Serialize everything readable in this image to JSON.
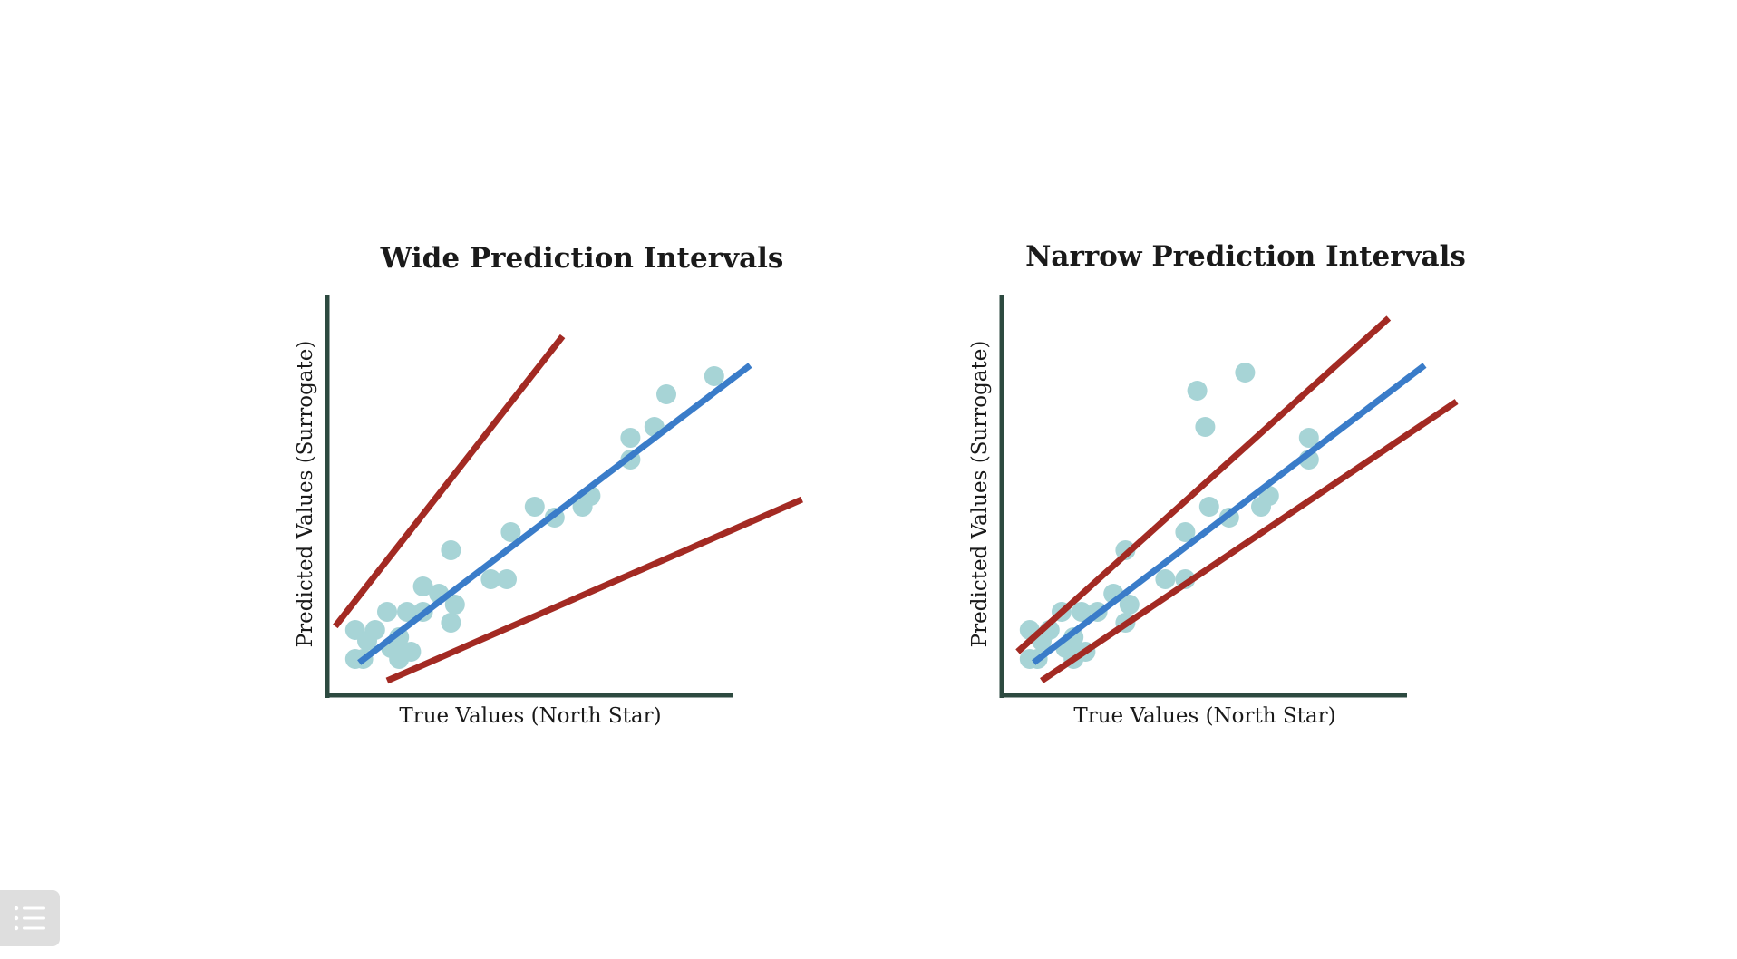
{
  "chart_data": [
    {
      "type": "scatter",
      "title": "Wide Prediction Intervals",
      "xlabel": "True Values (North Star)",
      "ylabel": "Predicted Values (Surrogate)",
      "xlim": [
        0,
        100
      ],
      "ylim": [
        0,
        100
      ],
      "grid": false,
      "points": [
        [
          7,
          10
        ],
        [
          9,
          10
        ],
        [
          7,
          18
        ],
        [
          10,
          15
        ],
        [
          12,
          18
        ],
        [
          16,
          13
        ],
        [
          18,
          10
        ],
        [
          19,
          12
        ],
        [
          21,
          12
        ],
        [
          18,
          16
        ],
        [
          20,
          23
        ],
        [
          24,
          23
        ],
        [
          15,
          23
        ],
        [
          28,
          28
        ],
        [
          24,
          30
        ],
        [
          31,
          20
        ],
        [
          32,
          25
        ],
        [
          31,
          40
        ],
        [
          41,
          32
        ],
        [
          45,
          32
        ],
        [
          46,
          45
        ],
        [
          52,
          52
        ],
        [
          57,
          49
        ],
        [
          64,
          52
        ],
        [
          66,
          55
        ],
        [
          76,
          65
        ],
        [
          76,
          71
        ],
        [
          82,
          74
        ],
        [
          85,
          83
        ],
        [
          97,
          88
        ]
      ],
      "lines": [
        {
          "name": "regression",
          "color": "#3a7cc9",
          "from": [
            8,
            9
          ],
          "to": [
            106,
            91
          ]
        },
        {
          "name": "upper-interval",
          "color": "#a32a23",
          "from": [
            2,
            19
          ],
          "to": [
            59,
            99
          ]
        },
        {
          "name": "lower-interval",
          "color": "#a32a23",
          "from": [
            15,
            4
          ],
          "to": [
            119,
            54
          ]
        }
      ]
    },
    {
      "type": "scatter",
      "title": "Narrow Prediction Intervals",
      "xlabel": "True Values (North Star)",
      "ylabel": "Predicted Values (Surrogate)",
      "xlim": [
        0,
        100
      ],
      "ylim": [
        0,
        100
      ],
      "grid": false,
      "points": [
        [
          7,
          10
        ],
        [
          9,
          10
        ],
        [
          7,
          18
        ],
        [
          10,
          15
        ],
        [
          12,
          18
        ],
        [
          16,
          13
        ],
        [
          18,
          10
        ],
        [
          19,
          12
        ],
        [
          21,
          12
        ],
        [
          18,
          16
        ],
        [
          20,
          23
        ],
        [
          24,
          23
        ],
        [
          15,
          23
        ],
        [
          28,
          28
        ],
        [
          31,
          20
        ],
        [
          32,
          25
        ],
        [
          31,
          40
        ],
        [
          41,
          32
        ],
        [
          46,
          32
        ],
        [
          46,
          45
        ],
        [
          49,
          84
        ],
        [
          52,
          52
        ],
        [
          51,
          74
        ],
        [
          57,
          49
        ],
        [
          61,
          89
        ],
        [
          65,
          52
        ],
        [
          67,
          55
        ],
        [
          77,
          65
        ],
        [
          77,
          71
        ]
      ],
      "lines": [
        {
          "name": "regression",
          "color": "#3a7cc9",
          "from": [
            8,
            9
          ],
          "to": [
            106,
            91
          ]
        },
        {
          "name": "upper-interval",
          "color": "#a32a23",
          "from": [
            4,
            12
          ],
          "to": [
            97,
            104
          ]
        },
        {
          "name": "lower-interval",
          "color": "#a32a23",
          "from": [
            10,
            4
          ],
          "to": [
            114,
            81
          ]
        }
      ]
    }
  ],
  "colors": {
    "axis": "#2d4a40",
    "point": "#a7d4d6",
    "regression": "#3a7cc9",
    "interval": "#a32a23"
  },
  "menu_button": {
    "icon": "list-icon"
  }
}
